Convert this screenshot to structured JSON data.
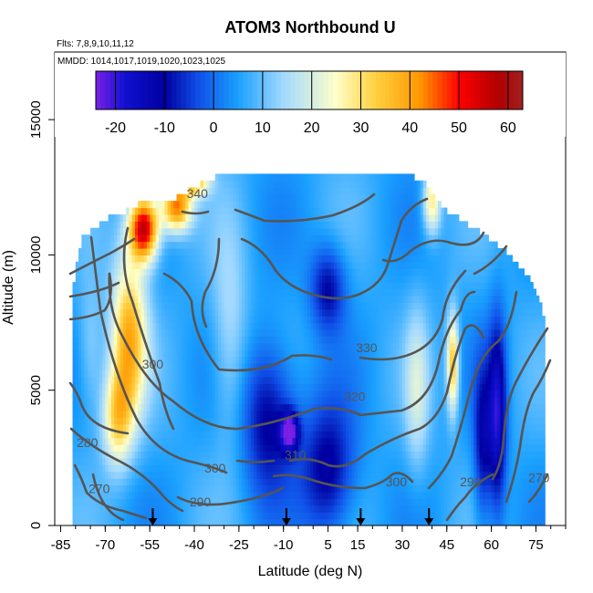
{
  "chart_data": {
    "type": "heatmap",
    "title": "ATOM3 Northbound U",
    "subtitle_flights": "Flts: 7,8,9,10,11,12",
    "subtitle_dates": "MMDD: 1014,1017,1019,1020,1023,1025",
    "xlabel": "Latitude (deg N)",
    "ylabel": "Altitude (m)",
    "xlim": [
      -87,
      85
    ],
    "ylim": [
      0,
      17500
    ],
    "x_ticks": [
      "-85",
      "-70",
      "-55",
      "-40",
      "-25",
      "-10",
      "5",
      "15",
      "30",
      "45",
      "60",
      "75"
    ],
    "x_tick_values": [
      -85,
      -70,
      -55,
      -40,
      -25,
      -10,
      5,
      15,
      30,
      45,
      60,
      75
    ],
    "y_ticks": [
      "0",
      "5000",
      "10000",
      "15000"
    ],
    "y_tick_values": [
      0,
      5000,
      10000,
      15000
    ],
    "colorbar": {
      "range": [
        -24,
        63
      ],
      "ticks": [
        "-20",
        "-10",
        "0",
        "10",
        "20",
        "30",
        "40",
        "50",
        "60"
      ],
      "tick_values": [
        -20,
        -10,
        0,
        10,
        20,
        30,
        40,
        50,
        60
      ],
      "colors": [
        "#7a20e6",
        "#1010d0",
        "#0000a0",
        "#1050e8",
        "#1aa0ff",
        "#a0d8ff",
        "#ffffc8",
        "#ffd040",
        "#ff9800",
        "#ff0000",
        "#b00000",
        "#a02020"
      ],
      "color_stops": [
        -24,
        -18,
        -10,
        -3,
        5,
        14,
        25,
        33,
        42,
        50,
        58,
        63
      ]
    },
    "theta_contours": {
      "levels": [
        "270",
        "280",
        "290",
        "300",
        "310",
        "320",
        "330",
        "340"
      ],
      "labels": [
        {
          "text": "340",
          "lat": -39,
          "alt": 12100
        },
        {
          "text": "330",
          "lat": 18,
          "alt": 6400
        },
        {
          "text": "320",
          "lat": 14,
          "alt": 4600
        },
        {
          "text": "300",
          "lat": -54,
          "alt": 5800
        },
        {
          "text": "310",
          "lat": -6,
          "alt": 2450
        },
        {
          "text": "300",
          "lat": -33,
          "alt": 1950
        },
        {
          "text": "290",
          "lat": -38,
          "alt": 700
        },
        {
          "text": "280",
          "lat": -76,
          "alt": 2900
        },
        {
          "text": "270",
          "lat": -72,
          "alt": 1200
        },
        {
          "text": "300",
          "lat": 28,
          "alt": 1450
        },
        {
          "text": "290",
          "lat": 53,
          "alt": 1450
        },
        {
          "text": "270",
          "lat": 76,
          "alt": 1600
        }
      ]
    },
    "profile_markers_lat": [
      -54,
      -9,
      16,
      39
    ],
    "data_envelope": [
      [
        -81,
        0,
        8700
      ],
      [
        -78,
        0,
        10500
      ],
      [
        -70,
        0,
        11200
      ],
      [
        -63,
        0,
        11500
      ],
      [
        -56,
        0,
        12000
      ],
      [
        -46,
        0,
        12000
      ],
      [
        -38,
        0,
        12500
      ],
      [
        -28,
        0,
        13000
      ],
      [
        -15,
        0,
        13000
      ],
      [
        0,
        0,
        12800
      ],
      [
        15,
        0,
        12800
      ],
      [
        30,
        0,
        13000
      ],
      [
        38,
        0,
        12500
      ],
      [
        45,
        0,
        11500
      ],
      [
        55,
        0,
        10800
      ],
      [
        65,
        0,
        10000
      ],
      [
        73,
        0,
        9000
      ],
      [
        78,
        0,
        7600
      ]
    ],
    "wind_features": [
      {
        "lat": -57,
        "alt": 11000,
        "u": 58,
        "slat": 5,
        "salt": 1200
      },
      {
        "lat": -62,
        "alt": 7000,
        "u": 38,
        "slat": 6,
        "salt": 3000
      },
      {
        "lat": -46,
        "alt": 11800,
        "u": 45,
        "slat": 5,
        "salt": 900
      },
      {
        "lat": -40,
        "alt": 12700,
        "u": 34,
        "slat": 5,
        "salt": 500
      },
      {
        "lat": -66,
        "alt": 4000,
        "u": 30,
        "slat": 5,
        "salt": 1800
      },
      {
        "lat": -15,
        "alt": 4000,
        "u": -12,
        "slat": 9,
        "salt": 2800
      },
      {
        "lat": -8,
        "alt": 3500,
        "u": -22,
        "slat": 3,
        "salt": 700
      },
      {
        "lat": 5,
        "alt": 8800,
        "u": -10,
        "slat": 6,
        "salt": 1600
      },
      {
        "lat": 5,
        "alt": 2000,
        "u": -12,
        "slat": 9,
        "salt": 2500
      },
      {
        "lat": 62,
        "alt": 4000,
        "u": -18,
        "slat": 3,
        "salt": 3500
      },
      {
        "lat": 57,
        "alt": 3000,
        "u": -10,
        "slat": 3,
        "salt": 3000
      },
      {
        "lat": 40,
        "alt": 12000,
        "u": 30,
        "slat": 3,
        "salt": 1200
      },
      {
        "lat": 47,
        "alt": 6000,
        "u": 36,
        "slat": 2,
        "salt": 1800
      },
      {
        "lat": -28,
        "alt": 7000,
        "u": 16,
        "slat": 6,
        "salt": 4000
      },
      {
        "lat": 35,
        "alt": 5000,
        "u": 18,
        "slat": 4,
        "salt": 3000
      },
      {
        "lat": -75,
        "alt": 6500,
        "u": 14,
        "slat": 4,
        "salt": 2500
      }
    ],
    "background_u": 6
  }
}
